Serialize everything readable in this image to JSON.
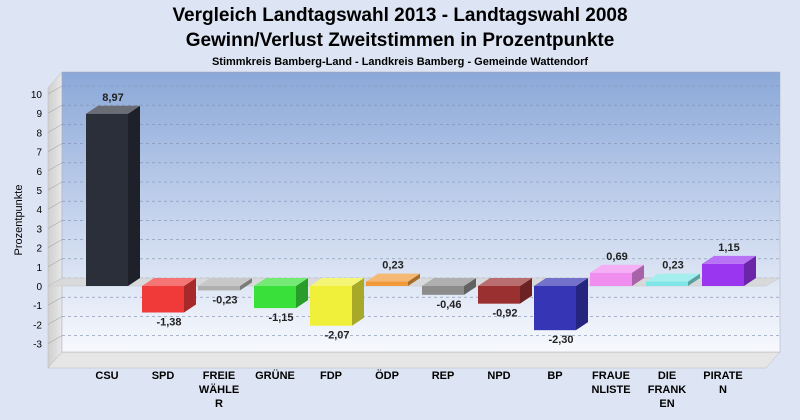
{
  "chart_data": {
    "type": "bar",
    "title": "Vergleich Landtagswahl 2013 - Landtagswahl 2008",
    "subtitle": "Gewinn/Verlust Zweitstimmen in Prozentpunkte",
    "caption": "Stimmkreis Bamberg-Land - Landkreis Bamberg - Gemeinde Wattendorf",
    "ylabel": "Prozentpunkte",
    "xlabel": "",
    "ylim": [
      -3,
      10
    ],
    "yticks": [
      "10",
      "9",
      "8",
      "7",
      "6",
      "5",
      "4",
      "3",
      "2",
      "1",
      "0",
      "-1",
      "-2",
      "-3"
    ],
    "grid": true,
    "categories": [
      {
        "lines": [
          "CSU"
        ]
      },
      {
        "lines": [
          "SPD"
        ]
      },
      {
        "lines": [
          "FREIE",
          "WÄHLE",
          "R"
        ]
      },
      {
        "lines": [
          "GRÜNE"
        ]
      },
      {
        "lines": [
          "FDP"
        ]
      },
      {
        "lines": [
          "ÖDP"
        ]
      },
      {
        "lines": [
          "REP"
        ]
      },
      {
        "lines": [
          "NPD"
        ]
      },
      {
        "lines": [
          "BP"
        ]
      },
      {
        "lines": [
          "FRAUE",
          "NLISTE"
        ]
      },
      {
        "lines": [
          "DIE",
          "FRANK",
          "EN"
        ]
      },
      {
        "lines": [
          "PIRATE",
          "N"
        ]
      }
    ],
    "values": [
      8.97,
      -1.38,
      -0.23,
      -1.15,
      -2.07,
      0.23,
      -0.46,
      -0.92,
      -2.3,
      0.69,
      0.23,
      1.15
    ],
    "value_labels": [
      "8,97",
      "-1,38",
      "-0,23",
      "-1,15",
      "-2,07",
      "0,23",
      "-0,46",
      "-0,92",
      "-2,30",
      "0,69",
      "0,23",
      "1,15"
    ],
    "colors": [
      "#2b2f3a",
      "#f03a3a",
      "#b0b0b0",
      "#3ae03a",
      "#f0f03a",
      "#f09a3a",
      "#8c8c8c",
      "#9a3030",
      "#3535b5",
      "#f08ef0",
      "#7ee6e6",
      "#9a35f0"
    ]
  }
}
